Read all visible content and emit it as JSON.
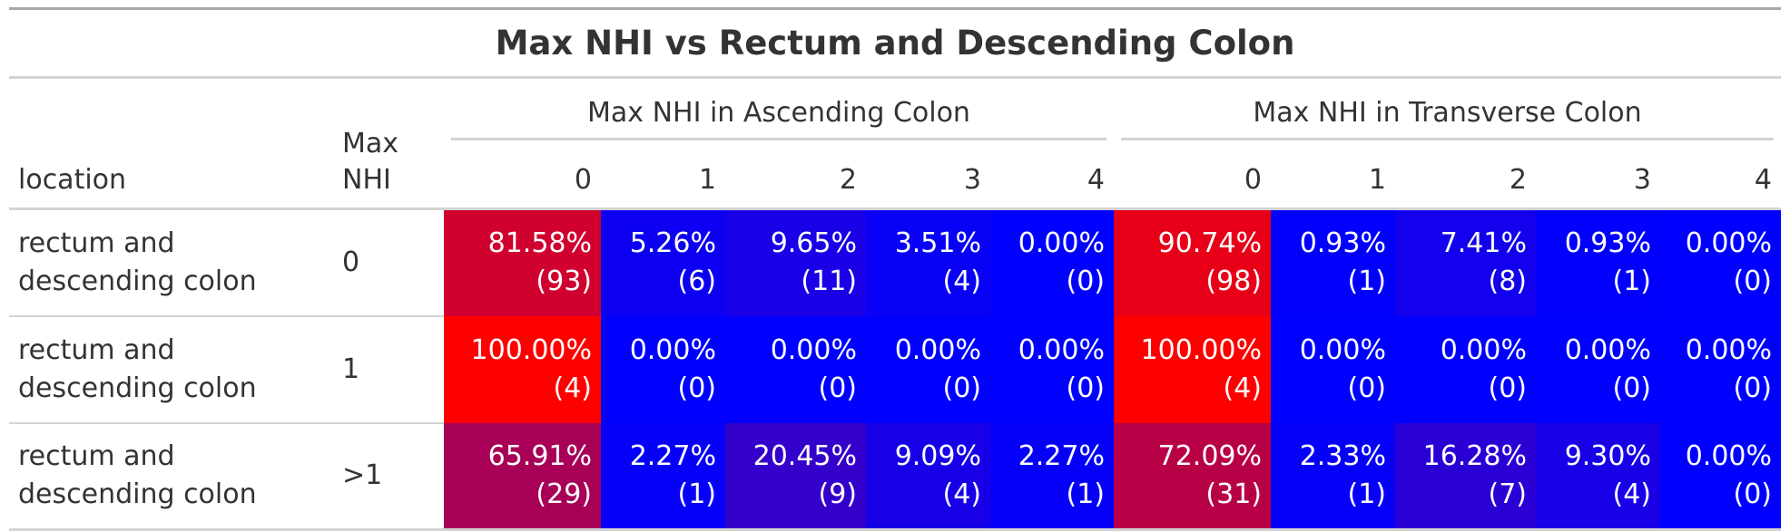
{
  "chart_data": {
    "type": "table",
    "title": "Max NHI vs Rectum and Descending Colon",
    "stub_headers": {
      "location": "location",
      "max_nhi": "Max NHI"
    },
    "spanners": [
      {
        "label": "Max NHI in Ascending Colon",
        "columns": [
          "0",
          "1",
          "2",
          "3",
          "4"
        ]
      },
      {
        "label": "Max NHI in Transverse Colon",
        "columns": [
          "0",
          "1",
          "2",
          "3",
          "4"
        ]
      }
    ],
    "rows": [
      {
        "location": "rectum and descending colon",
        "max_nhi": "0",
        "ascending": [
          {
            "text": "81.58% (93)",
            "pct": 81.58
          },
          {
            "text": "5.26% (6)",
            "pct": 5.26
          },
          {
            "text": "9.65% (11)",
            "pct": 9.65
          },
          {
            "text": "3.51% (4)",
            "pct": 3.51
          },
          {
            "text": "0.00% (0)",
            "pct": 0.0
          }
        ],
        "transverse": [
          {
            "text": "90.74% (98)",
            "pct": 90.74
          },
          {
            "text": "0.93% (1)",
            "pct": 0.93
          },
          {
            "text": "7.41% (8)",
            "pct": 7.41
          },
          {
            "text": "0.93% (1)",
            "pct": 0.93
          },
          {
            "text": "0.00% (0)",
            "pct": 0.0
          }
        ]
      },
      {
        "location": "rectum and descending colon",
        "max_nhi": "1",
        "ascending": [
          {
            "text": "100.00% (4)",
            "pct": 100.0
          },
          {
            "text": "0.00% (0)",
            "pct": 0.0
          },
          {
            "text": "0.00% (0)",
            "pct": 0.0
          },
          {
            "text": "0.00% (0)",
            "pct": 0.0
          },
          {
            "text": "0.00% (0)",
            "pct": 0.0
          }
        ],
        "transverse": [
          {
            "text": "100.00% (4)",
            "pct": 100.0
          },
          {
            "text": "0.00% (0)",
            "pct": 0.0
          },
          {
            "text": "0.00% (0)",
            "pct": 0.0
          },
          {
            "text": "0.00% (0)",
            "pct": 0.0
          },
          {
            "text": "0.00% (0)",
            "pct": 0.0
          }
        ]
      },
      {
        "location": "rectum and descending colon",
        "max_nhi": ">1",
        "ascending": [
          {
            "text": "65.91% (29)",
            "pct": 65.91
          },
          {
            "text": "2.27% (1)",
            "pct": 2.27
          },
          {
            "text": "20.45% (9)",
            "pct": 20.45
          },
          {
            "text": "9.09% (4)",
            "pct": 9.09
          },
          {
            "text": "2.27% (1)",
            "pct": 2.27
          }
        ],
        "transverse": [
          {
            "text": "72.09% (31)",
            "pct": 72.09
          },
          {
            "text": "2.33% (1)",
            "pct": 2.33
          },
          {
            "text": "16.28% (7)",
            "pct": 16.28
          },
          {
            "text": "9.30% (4)",
            "pct": 9.3
          },
          {
            "text": "0.00% (0)",
            "pct": 0.0
          }
        ]
      }
    ],
    "color_scale": {
      "low": "#0000ff",
      "high": "#ff0000"
    }
  }
}
